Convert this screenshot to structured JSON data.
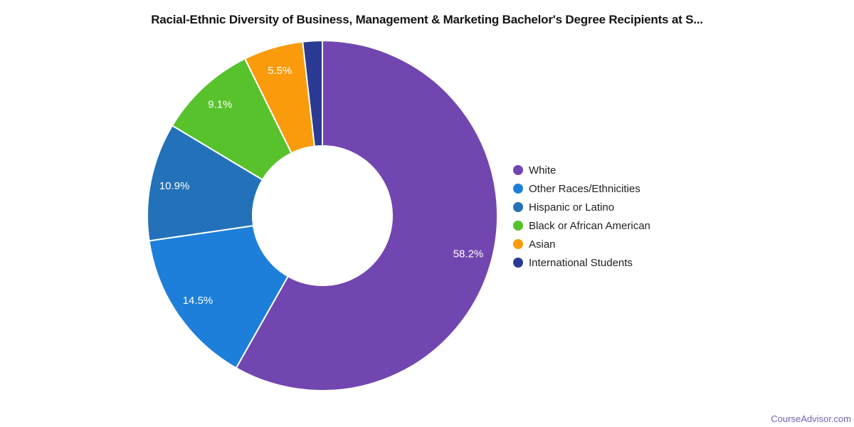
{
  "title": "Racial-Ethnic Diversity of Business, Management & Marketing Bachelor's Degree Recipients at S...",
  "footer": {
    "link_label": "CourseAdvisor.com",
    "link_color": "#7a5fb5"
  },
  "chart_data": {
    "type": "pie",
    "subtype": "donut",
    "start_angle_deg": 0,
    "clockwise": true,
    "legend_position": "right",
    "categories": [
      "White",
      "Other Races/Ethnicities",
      "Hispanic or Latino",
      "Black or African American",
      "Asian",
      "International Students"
    ],
    "values": [
      58.2,
      14.5,
      10.9,
      9.1,
      5.5,
      1.8
    ],
    "slice_labels": [
      "58.2%",
      "14.5%",
      "10.9%",
      "9.1%",
      "5.5%",
      ""
    ],
    "colors": [
      "#7246B0",
      "#1D7FD9",
      "#2372B9",
      "#57C22C",
      "#F99B0B",
      "#2B3A93"
    ],
    "slice_label_color": "#ffffff",
    "legend_text_color": "#212121"
  }
}
